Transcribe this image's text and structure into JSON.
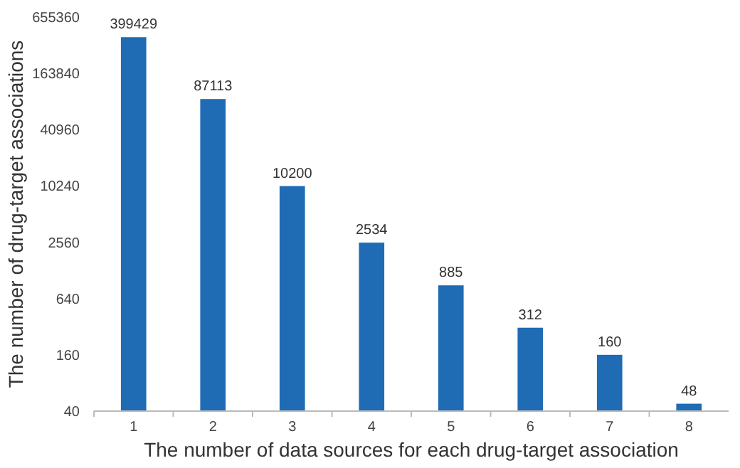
{
  "chart_data": {
    "type": "bar",
    "xlabel": "The number of data sources for each drug-target association",
    "ylabel": "The number of drug-target associations",
    "categories": [
      "1",
      "2",
      "3",
      "4",
      "5",
      "6",
      "7",
      "8"
    ],
    "values": [
      399429,
      87113,
      10200,
      2534,
      885,
      312,
      160,
      48
    ],
    "color": "#1f6bb4",
    "log": true,
    "ylim": [
      40,
      655360
    ],
    "yticks": [
      40,
      160,
      640,
      2560,
      10240,
      40960,
      163840,
      655360
    ],
    "grid": false,
    "data_labels": true
  }
}
